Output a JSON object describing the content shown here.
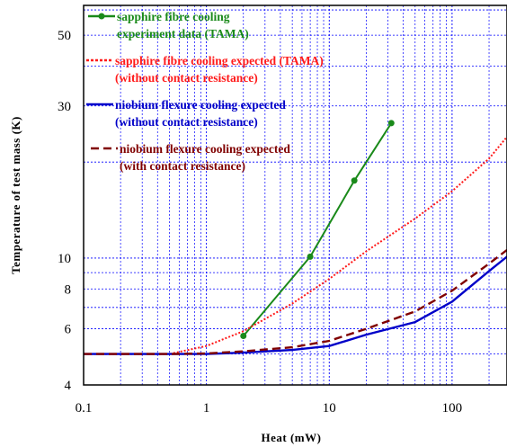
{
  "chart_data": {
    "type": "line",
    "title": "",
    "xlabel": "Heat (mW)",
    "ylabel": "Temperature of test mass (K)",
    "xscale": "log",
    "yscale": "log",
    "xlim": [
      0.1,
      280
    ],
    "ylim": [
      4,
      62
    ],
    "x_ticks": [
      0.1,
      1,
      10,
      100
    ],
    "x_tick_labels": [
      "0.1",
      "1",
      "10",
      "100"
    ],
    "y_ticks": [
      4,
      6,
      8,
      10,
      30,
      50
    ],
    "y_tick_labels": [
      "4",
      "6",
      "8",
      "10",
      "30",
      "50"
    ],
    "grid": true,
    "legend_position": "top-left",
    "colors": {
      "sapphire_data": "#1a8a1a",
      "sapphire_expected": "#ff1a1a",
      "niobium_no_contact": "#0000c8",
      "niobium_with_contact": "#800000",
      "grid": "#0000ff"
    },
    "series": [
      {
        "name": "sapphire fibre cooling experiment data (TAMA)",
        "legend_lines": [
          "sapphire fibre cooling",
          "experiment data (TAMA)"
        ],
        "style": "solid-markers",
        "color": "#1a8a1a",
        "x": [
          2,
          7,
          16,
          32
        ],
        "y": [
          5.7,
          10.1,
          17.5,
          26.5
        ]
      },
      {
        "name": "sapphire fibre cooling expected (TAMA) (without contact resistance)",
        "legend_lines": [
          "sapphire fibre cooling expected (TAMA)",
          "(without contact resistance)"
        ],
        "style": "dotted",
        "color": "#ff1a1a",
        "x": [
          0.1,
          0.5,
          1,
          2,
          5,
          10,
          20,
          50,
          100,
          200,
          280
        ],
        "y": [
          5,
          5,
          5.3,
          5.9,
          7.2,
          8.6,
          10.5,
          13.3,
          16.2,
          20.5,
          24
        ]
      },
      {
        "name": "niobium flexure cooling expected (without contact resistance)",
        "legend_lines": [
          "niobium flexure cooling expected",
          "(without contact resistance)"
        ],
        "style": "solid",
        "color": "#0000c8",
        "x": [
          0.1,
          0.5,
          1,
          2,
          5,
          10,
          20,
          50,
          100,
          200,
          280
        ],
        "y": [
          5,
          5,
          5,
          5.05,
          5.15,
          5.3,
          5.75,
          6.3,
          7.3,
          9.1,
          10.1
        ]
      },
      {
        "name": "niobium flexure cooling expected (with contact resistance)",
        "legend_lines": [
          "niobium flexure cooling expected",
          "(with contact resistance)"
        ],
        "style": "dashed",
        "color": "#800000",
        "x": [
          0.1,
          0.5,
          1,
          2,
          5,
          10,
          20,
          50,
          100,
          200,
          280
        ],
        "y": [
          5,
          5,
          5.02,
          5.1,
          5.25,
          5.5,
          6,
          6.8,
          7.9,
          9.6,
          10.6
        ]
      }
    ]
  }
}
